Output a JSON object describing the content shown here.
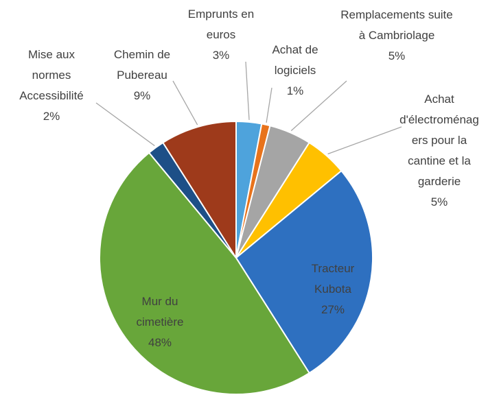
{
  "chart_data": {
    "type": "pie",
    "categories": [
      "Emprunts en euros",
      "Achat de logiciels",
      "Remplacements suite à Cambriolage",
      "Achat d'électroménagers pour la cantine et la garderie",
      "Tracteur Kubota",
      "Mur du cimetière",
      "Mise aux normes Accessibilité",
      "Chemin de Pubereau"
    ],
    "values": [
      3,
      1,
      5,
      5,
      27,
      48,
      2,
      9
    ],
    "value_labels": [
      "3%",
      "1%",
      "5%",
      "5%",
      "27%",
      "48%",
      "2%",
      "9%"
    ],
    "colors": [
      "#4ea3dc",
      "#e8731c",
      "#a5a5a5",
      "#ffc000",
      "#2e70c0",
      "#68a63a",
      "#1d4f87",
      "#9e3a1b"
    ]
  }
}
